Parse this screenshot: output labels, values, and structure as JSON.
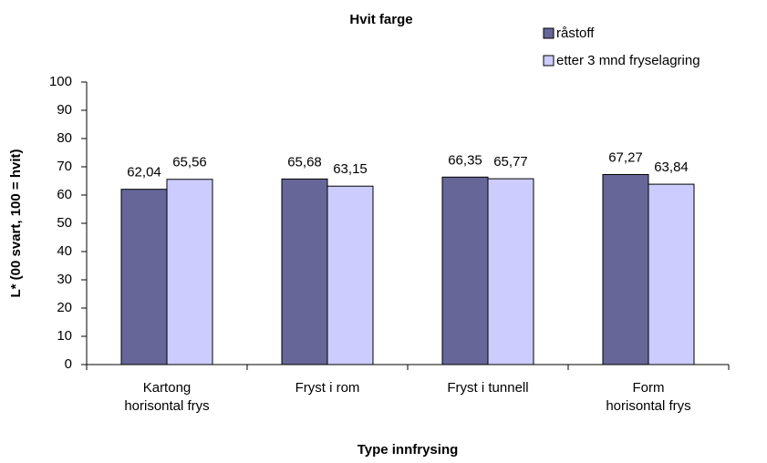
{
  "chart_data": {
    "type": "bar",
    "title": "Hvit farge",
    "xlabel": "Type innfrysing",
    "ylabel": "L* (00 svart, 100 = hvit)",
    "categories": [
      "Kartong\nhorisontal frys",
      "Fryst i rom",
      "Fryst i tunnell",
      "Form\nhorisontal frys"
    ],
    "series": [
      {
        "name": "råstoff",
        "color": "#666699",
        "values": [
          62.04,
          65.68,
          66.35,
          67.27
        ],
        "value_labels": [
          "62,04",
          "65,68",
          "66,35",
          "67,27"
        ]
      },
      {
        "name": "etter 3 mnd fryselagring",
        "color": "#ccccff",
        "values": [
          65.56,
          63.15,
          65.77,
          63.84
        ],
        "value_labels": [
          "65,56",
          "63,15",
          "65,77",
          "63,84"
        ]
      }
    ],
    "ylim": [
      0,
      100
    ],
    "yticks": [
      0,
      10,
      20,
      30,
      40,
      50,
      60,
      70,
      80,
      90,
      100
    ],
    "grid": false
  }
}
